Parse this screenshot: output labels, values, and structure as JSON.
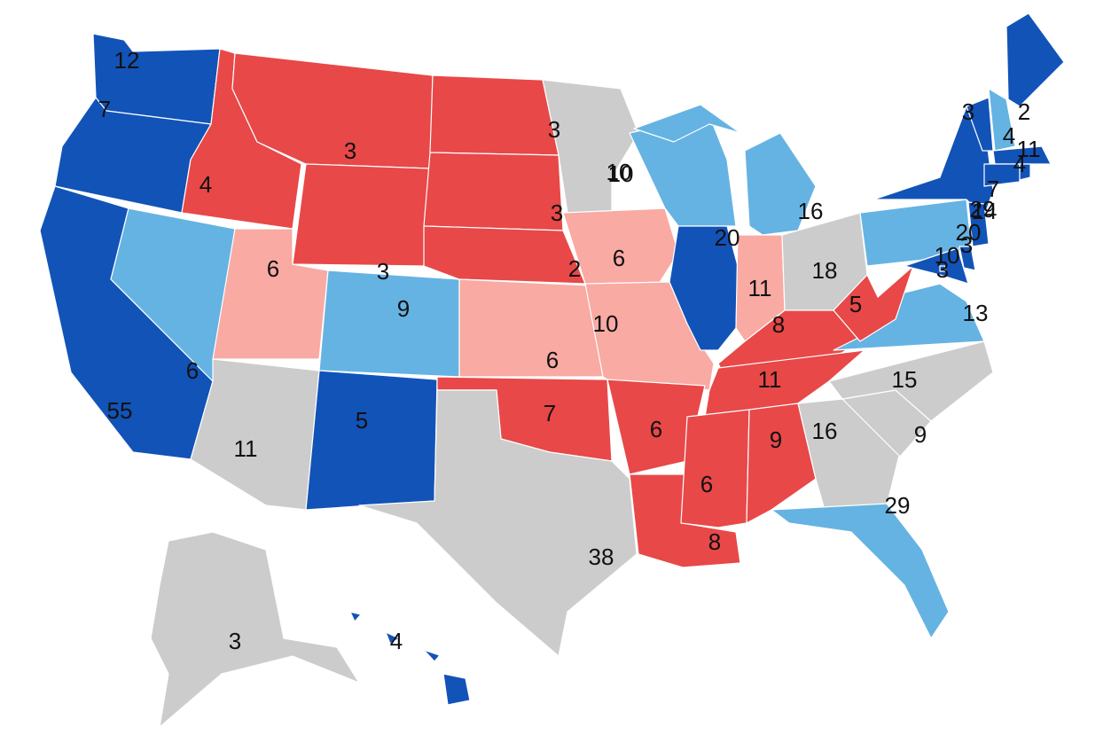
{
  "states": [
    {
      "votes": 12,
      "color": "#1253b8"
    },
    {
      "votes": 7,
      "color": "#1253b8"
    },
    {
      "votes": 55,
      "color": "#1253b8"
    },
    {
      "votes": 6,
      "color": "#65b3e3"
    },
    {
      "votes": 4,
      "color": "#e84848"
    },
    {
      "votes": 3,
      "color": "#e84848"
    },
    {
      "votes": 3,
      "color": "#e84848"
    },
    {
      "votes": 6,
      "color": "#f8aaa3"
    },
    {
      "votes": 9,
      "color": "#65b3e3"
    },
    {
      "votes": 11,
      "color": "#cccccc"
    },
    {
      "votes": 5,
      "color": "#1253b8"
    },
    {
      "votes": 3,
      "color": "#e84848"
    },
    {
      "votes": 3,
      "color": "#e84848"
    },
    {
      "votes": 2,
      "color": "#e84848"
    },
    {
      "votes": 6,
      "color": "#f8aaa3"
    },
    {
      "votes": 7,
      "color": "#e84848"
    },
    {
      "votes": 38,
      "color": "#cccccc"
    },
    {
      "votes": 10,
      "color": "#cccccc"
    },
    {
      "votes": 6,
      "color": "#f8aaa3"
    },
    {
      "votes": 10,
      "color": "#f8aaa3"
    },
    {
      "votes": 6,
      "color": "#e84848"
    },
    {
      "votes": 8,
      "color": "#e84848"
    },
    {
      "votes": 10,
      "color": "#65b3e3"
    },
    {
      "votes": 20,
      "color": "#1253b8"
    },
    {
      "votes": 16,
      "color": "#65b3e3"
    },
    {
      "votes": 11,
      "color": "#f8aaa3"
    },
    {
      "votes": 18,
      "color": "#cccccc"
    },
    {
      "votes": 8,
      "color": "#e84848"
    },
    {
      "votes": 11,
      "color": "#e84848"
    },
    {
      "votes": 6,
      "color": "#e84848"
    },
    {
      "votes": 9,
      "color": "#e84848"
    },
    {
      "votes": 16,
      "color": "#cccccc"
    },
    {
      "votes": 29,
      "color": "#65b3e3"
    },
    {
      "votes": 9,
      "color": "#cccccc"
    },
    {
      "votes": 15,
      "color": "#cccccc"
    },
    {
      "votes": 13,
      "color": "#65b3e3"
    },
    {
      "votes": 5,
      "color": "#e84848"
    },
    {
      "votes": 20,
      "color": "#65b3e3"
    },
    {
      "votes": 29,
      "color": "#1253b8"
    },
    {
      "votes": 3,
      "color": "#1253b8"
    },
    {
      "votes": 4,
      "color": "#65b3e3"
    },
    {
      "votes": 2,
      "color": "#1253b8"
    },
    {
      "votes": 11,
      "color": "#1253b8"
    },
    {
      "votes": 7,
      "color": "#1253b8"
    },
    {
      "votes": 4,
      "color": "#1253b8"
    },
    {
      "votes": 14,
      "color": "#1253b8"
    },
    {
      "votes": 3,
      "color": "#1253b8"
    },
    {
      "votes": 10,
      "color": "#1253b8"
    },
    {
      "votes": 3,
      "color": "#1253b8"
    },
    {
      "votes": 3,
      "color": "#cccccc"
    },
    {
      "votes": 4,
      "color": "#1253b8"
    }
  ]
}
